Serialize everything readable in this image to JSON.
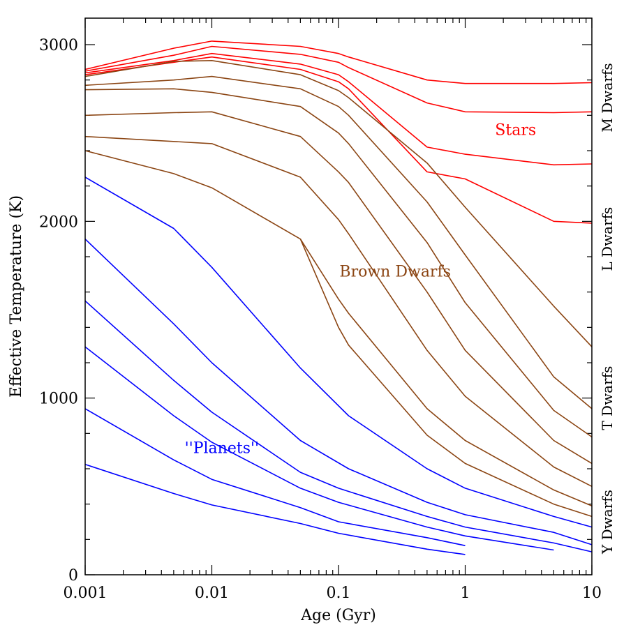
{
  "chart_data": {
    "type": "line",
    "xscale": "log",
    "xlim": [
      0.001,
      10
    ],
    "ylim": [
      0,
      3150
    ],
    "xlabel": "Age (Gyr)",
    "ylabel": "Effective Temperature (K)",
    "x_ticks": [
      0.001,
      0.01,
      0.1,
      1,
      10
    ],
    "x_tick_labels": [
      "0.001",
      "0.01",
      "0.1",
      "1",
      "10"
    ],
    "y_ticks": [
      0,
      1000,
      2000,
      3000
    ],
    "y_tick_labels": [
      "0",
      "1000",
      "2000",
      "3000"
    ],
    "colors": {
      "stars": "#ff0000",
      "brown_dwarfs": "#8b4513",
      "planets": "#0000ff"
    },
    "annotations": [
      {
        "text": "Stars",
        "x": 2.5,
        "y": 2520,
        "group": "stars"
      },
      {
        "text": "Brown Dwarfs",
        "x": 0.28,
        "y": 1720,
        "group": "brown_dwarfs"
      },
      {
        "text": "''Planets''",
        "x": 0.012,
        "y": 720,
        "group": "planets"
      }
    ],
    "right_labels": [
      {
        "text": "M Dwarfs",
        "y": 2700
      },
      {
        "text": "L Dwarfs",
        "y": 1900
      },
      {
        "text": "T Dwarfs",
        "y": 1000
      },
      {
        "text": "Y Dwarfs",
        "y": 300
      }
    ],
    "series": [
      {
        "group": "stars",
        "x": [
          0.001,
          0.005,
          0.01,
          0.05,
          0.1,
          0.12,
          0.5,
          1,
          5,
          10
        ],
        "y": [
          2860,
          2980,
          3020,
          2990,
          2950,
          2930,
          2800,
          2780,
          2780,
          2785
        ]
      },
      {
        "group": "stars",
        "x": [
          0.001,
          0.005,
          0.01,
          0.05,
          0.1,
          0.12,
          0.5,
          1,
          5,
          10
        ],
        "y": [
          2850,
          2940,
          2990,
          2945,
          2900,
          2870,
          2670,
          2620,
          2615,
          2620
        ]
      },
      {
        "group": "stars",
        "x": [
          0.001,
          0.005,
          0.01,
          0.05,
          0.1,
          0.12,
          0.5,
          1,
          5,
          10
        ],
        "y": [
          2840,
          2910,
          2950,
          2890,
          2830,
          2790,
          2420,
          2380,
          2320,
          2325
        ]
      },
      {
        "group": "stars",
        "x": [
          0.001,
          0.005,
          0.01,
          0.05,
          0.1,
          0.12,
          0.5,
          1,
          5,
          10
        ],
        "y": [
          2830,
          2900,
          2930,
          2860,
          2790,
          2750,
          2280,
          2240,
          2000,
          1990
        ]
      },
      {
        "group": "brown_dwarfs",
        "x": [
          0.001,
          0.005,
          0.01,
          0.05,
          0.1,
          0.12,
          0.5,
          1,
          5,
          10
        ],
        "y": [
          2820,
          2905,
          2910,
          2830,
          2740,
          2700,
          2330,
          2080,
          1520,
          1290
        ]
      },
      {
        "group": "brown_dwarfs",
        "x": [
          0.001,
          0.005,
          0.01,
          0.05,
          0.1,
          0.12,
          0.5,
          1,
          5,
          10
        ],
        "y": [
          2770,
          2800,
          2820,
          2750,
          2650,
          2600,
          2110,
          1810,
          1120,
          940
        ]
      },
      {
        "group": "brown_dwarfs",
        "x": [
          0.001,
          0.005,
          0.01,
          0.05,
          0.1,
          0.12,
          0.5,
          1,
          5,
          10
        ],
        "y": [
          2745,
          2750,
          2730,
          2650,
          2500,
          2440,
          1880,
          1540,
          930,
          780
        ]
      },
      {
        "group": "brown_dwarfs",
        "x": [
          0.001,
          0.005,
          0.01,
          0.05,
          0.1,
          0.12,
          0.5,
          1,
          5,
          10
        ],
        "y": [
          2600,
          2615,
          2620,
          2480,
          2280,
          2220,
          1600,
          1270,
          760,
          630
        ]
      },
      {
        "group": "brown_dwarfs",
        "x": [
          0.001,
          0.01,
          0.05,
          0.1,
          0.12,
          0.5,
          1,
          5,
          10
        ],
        "y": [
          2480,
          2440,
          2250,
          2010,
          1930,
          1270,
          1010,
          610,
          500
        ]
      },
      {
        "group": "brown_dwarfs",
        "x": [
          0.001,
          0.005,
          0.01,
          0.05,
          0.1,
          0.12,
          0.5,
          1,
          5,
          10
        ],
        "y": [
          2400,
          2270,
          2190,
          1900,
          1560,
          1480,
          940,
          760,
          480,
          390
        ]
      },
      {
        "group": "brown_dwarfs",
        "x": [
          0.05,
          0.1,
          0.12,
          0.5,
          1,
          5,
          10
        ],
        "y": [
          1900,
          1400,
          1300,
          790,
          630,
          400,
          330
        ]
      },
      {
        "group": "planets",
        "x": [
          0.001,
          0.005,
          0.01,
          0.05,
          0.12,
          0.5,
          1,
          5,
          10
        ],
        "y": [
          2250,
          1960,
          1740,
          1170,
          900,
          600,
          490,
          330,
          270
        ]
      },
      {
        "group": "planets",
        "x": [
          0.001,
          0.005,
          0.01,
          0.05,
          0.12,
          0.5,
          1,
          5,
          10
        ],
        "y": [
          1900,
          1420,
          1200,
          760,
          600,
          410,
          340,
          240,
          170
        ]
      },
      {
        "group": "planets",
        "x": [
          0.001,
          0.005,
          0.01,
          0.05,
          0.1,
          0.5,
          1,
          5,
          10
        ],
        "y": [
          1550,
          1100,
          920,
          580,
          490,
          330,
          270,
          180,
          130
        ]
      },
      {
        "group": "planets",
        "x": [
          0.001,
          0.005,
          0.01,
          0.05,
          0.1,
          0.5,
          1,
          5
        ],
        "y": [
          1290,
          900,
          750,
          490,
          410,
          270,
          220,
          140
        ]
      },
      {
        "group": "planets",
        "x": [
          0.001,
          0.005,
          0.01,
          0.05,
          0.1,
          0.5,
          1
        ],
        "y": [
          940,
          650,
          540,
          380,
          300,
          210,
          165
        ]
      },
      {
        "group": "planets",
        "x": [
          0.001,
          0.005,
          0.01,
          0.05,
          0.1,
          0.5,
          1
        ],
        "y": [
          625,
          460,
          395,
          290,
          235,
          145,
          115
        ]
      }
    ]
  }
}
